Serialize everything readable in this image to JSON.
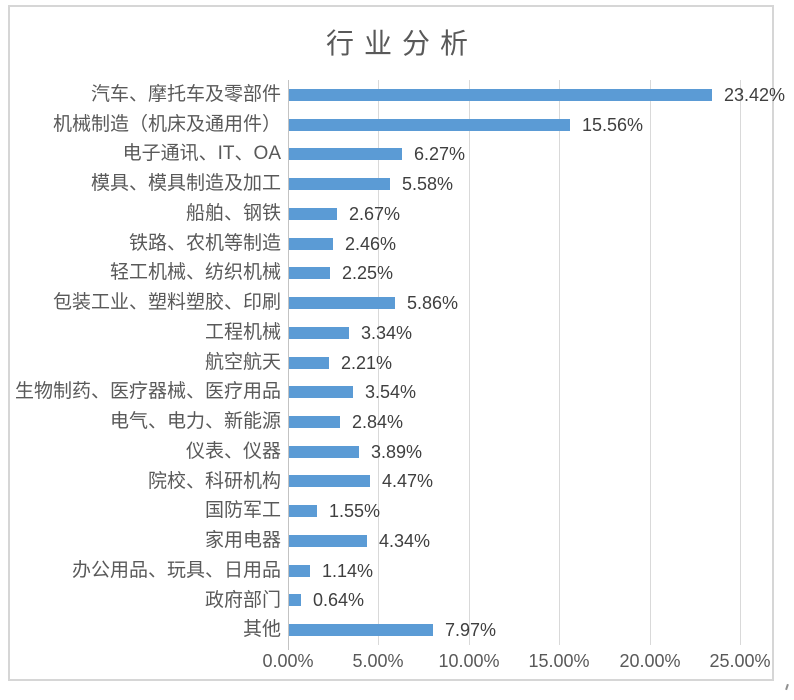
{
  "chart_data": {
    "type": "bar",
    "orientation": "horizontal",
    "title": "行业分析",
    "xlabel": "",
    "ylabel": "",
    "xlim": [
      0,
      25
    ],
    "xtick_step": 5,
    "x_tick_labels": [
      "0.00%",
      "5.00%",
      "10.00%",
      "15.00%",
      "20.00%",
      "25.00%"
    ],
    "grid": "vertical-on",
    "legend_position": "none",
    "categories": [
      "汽车、摩托车及零部件",
      "机械制造（机床及通用件）",
      "电子通讯、IT、OA",
      "模具、模具制造及加工",
      "船舶、钢铁",
      "铁路、农机等制造",
      "轻工机械、纺织机械",
      "包装工业、塑料塑胶、印刷",
      "工程机械",
      "航空航天",
      "生物制药、医疗器械、医疗用品",
      "电气、电力、新能源",
      "仪表、仪器",
      "院校、科研机构",
      "国防军工",
      "家用电器",
      "办公用品、玩具、日用品",
      "政府部门",
      "其他"
    ],
    "values": [
      23.42,
      15.56,
      6.27,
      5.58,
      2.67,
      2.46,
      2.25,
      5.86,
      3.34,
      2.21,
      3.54,
      2.84,
      3.89,
      4.47,
      1.55,
      4.34,
      1.14,
      0.64,
      7.97
    ],
    "value_labels": [
      "23.42%",
      "15.56%",
      "6.27%",
      "5.58%",
      "2.67%",
      "2.46%",
      "2.25%",
      "5.86%",
      "3.34%",
      "2.21%",
      "3.54%",
      "2.84%",
      "3.89%",
      "4.47%",
      "1.55%",
      "4.34%",
      "1.14%",
      "0.64%",
      "7.97%"
    ],
    "colors": {
      "bar": "#5b9bd5",
      "gridline": "#d9d9d9",
      "axis_line": "#c3c3c3",
      "title_text": "#595959",
      "category_text": "#595959",
      "value_text": "#3f3f3f",
      "tick_text": "#595959",
      "frame_border": "#d6d6d6"
    }
  }
}
